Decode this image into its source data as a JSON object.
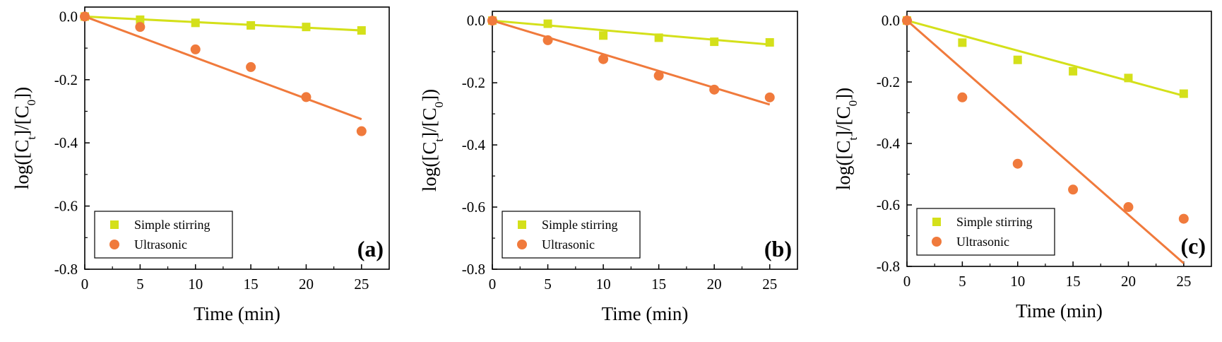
{
  "figure": {
    "panel_count": 3
  },
  "colors": {
    "simple_stirring": "#d4e01a",
    "ultrasonic": "#f07a3c",
    "axis": "#000000"
  },
  "chart_data": [
    {
      "type": "scatter",
      "panel_label": "(a)",
      "xlabel": "Time (min)",
      "ylabel_parts": [
        "log([C",
        "t",
        "]/[C",
        "0",
        "])"
      ],
      "xlim": [
        0,
        27.5
      ],
      "ylim": [
        -0.8,
        0.03
      ],
      "xticks": [
        0,
        5,
        10,
        15,
        20,
        25
      ],
      "xtick_labels": [
        "0",
        "5",
        "10",
        "15",
        "20",
        "25"
      ],
      "yticks": [
        0.0,
        -0.2,
        -0.4,
        -0.6,
        -0.8
      ],
      "ytick_labels": [
        "0.0",
        "-0.2",
        "-0.4",
        "-0.6",
        "-0.8"
      ],
      "legend": {
        "position": "bottom-left",
        "entries": [
          "Simple stirring",
          "Ultrasonic"
        ]
      },
      "series": [
        {
          "name": "Simple stirring",
          "marker": "square",
          "x": [
            0,
            5,
            10,
            15,
            20,
            25
          ],
          "y": [
            0.0,
            -0.01,
            -0.02,
            -0.028,
            -0.033,
            -0.044
          ],
          "fit": {
            "x": [
              0,
              25
            ],
            "y": [
              0.0,
              -0.044
            ]
          }
        },
        {
          "name": "Ultrasonic",
          "marker": "circle",
          "x": [
            0,
            5,
            10,
            15,
            20,
            25
          ],
          "y": [
            0.0,
            -0.033,
            -0.104,
            -0.16,
            -0.255,
            -0.363
          ],
          "fit": {
            "x": [
              0,
              25
            ],
            "y": [
              0.0,
              -0.325
            ]
          }
        }
      ]
    },
    {
      "type": "scatter",
      "panel_label": "(b)",
      "xlabel": "Time (min)",
      "ylabel_parts": [
        "log([C",
        "t",
        "]/[C",
        "0",
        "])"
      ],
      "xlim": [
        0,
        27.5
      ],
      "ylim": [
        -0.8,
        0.03
      ],
      "xticks": [
        0,
        5,
        10,
        15,
        20,
        25
      ],
      "xtick_labels": [
        "0",
        "5",
        "10",
        "15",
        "20",
        "25"
      ],
      "yticks": [
        0.0,
        -0.2,
        -0.4,
        -0.6,
        -0.8
      ],
      "ytick_labels": [
        "0.0",
        "-0.2",
        "-0.4",
        "-0.6",
        "-0.8"
      ],
      "legend": {
        "position": "bottom-left",
        "entries": [
          "Simple stirring",
          "Ultrasonic"
        ]
      },
      "series": [
        {
          "name": "Simple stirring",
          "marker": "square",
          "x": [
            0,
            5,
            10,
            15,
            20,
            25
          ],
          "y": [
            0.0,
            -0.01,
            -0.048,
            -0.055,
            -0.068,
            -0.07
          ],
          "fit": {
            "x": [
              0,
              25
            ],
            "y": [
              0.0,
              -0.077
            ]
          }
        },
        {
          "name": "Ultrasonic",
          "marker": "circle",
          "x": [
            0,
            5,
            10,
            15,
            20,
            25
          ],
          "y": [
            0.0,
            -0.063,
            -0.124,
            -0.177,
            -0.222,
            -0.247
          ],
          "fit": {
            "x": [
              0,
              25
            ],
            "y": [
              0.0,
              -0.27
            ]
          }
        }
      ]
    },
    {
      "type": "scatter",
      "panel_label": "(c)",
      "xlabel": "Time (min)",
      "ylabel_parts": [
        "log([C",
        "t",
        "]/[C",
        "0",
        "])"
      ],
      "xlim": [
        0,
        27.5
      ],
      "ylim": [
        -0.8,
        0.03
      ],
      "xticks": [
        0,
        5,
        10,
        15,
        20,
        25
      ],
      "xtick_labels": [
        "0",
        "5",
        "10",
        "15",
        "20",
        "25"
      ],
      "yticks": [
        0.0,
        -0.2,
        -0.4,
        -0.6,
        -0.8
      ],
      "ytick_labels": [
        "0.0",
        "-0.2",
        "-0.4",
        "-0.6",
        "-0.8"
      ],
      "legend": {
        "position": "bottom-left",
        "entries": [
          "Simple stirring",
          "Ultrasonic"
        ]
      },
      "series": [
        {
          "name": "Simple stirring",
          "marker": "square",
          "x": [
            0,
            5,
            10,
            15,
            20,
            25
          ],
          "y": [
            0.0,
            -0.072,
            -0.128,
            -0.165,
            -0.187,
            -0.238
          ],
          "fit": {
            "x": [
              0,
              25
            ],
            "y": [
              0.0,
              -0.245
            ]
          }
        },
        {
          "name": "Ultrasonic",
          "marker": "circle",
          "x": [
            0,
            5,
            10,
            15,
            20,
            25
          ],
          "y": [
            0.0,
            -0.25,
            -0.466,
            -0.55,
            -0.607,
            -0.645
          ],
          "fit": {
            "x": [
              0,
              25
            ],
            "y": [
              0.0,
              -0.79
            ]
          }
        }
      ]
    }
  ]
}
